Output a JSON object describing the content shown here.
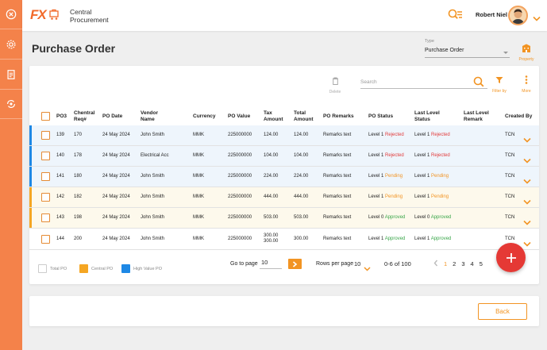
{
  "brand": {
    "logo": "FX",
    "name": "Central Procurement"
  },
  "user": {
    "name": "Robert Niel"
  },
  "page": {
    "title": "Purchase Order"
  },
  "type_filter": {
    "label": "Type",
    "value": "Purchase Order"
  },
  "property": {
    "label": "Property"
  },
  "toolbar": {
    "delete_label": "Delete",
    "search_placeholder": "Search",
    "filter_label": "Filter by",
    "more_label": "More"
  },
  "columns": {
    "po": "PO3",
    "req": "Chentral Req#",
    "date": "PO Date",
    "vendor": "Vendor Name",
    "currency": "Currency",
    "value": "PO Value",
    "tax": "Tax Amount",
    "total": "Total Amount",
    "remarks": "PO Remarks",
    "status": "PO Status",
    "last_status": "Last Level Status",
    "last_remark": "Last Level Remark",
    "created": "Created By"
  },
  "rows": [
    {
      "po": "139",
      "req": "170",
      "date": "24 May 2024",
      "vendor": "John Smith",
      "currency": "MMK",
      "value": "225000000",
      "tax": "124.00",
      "total": "124.00",
      "remarks": "Remarks text",
      "status_level": "Level 1",
      "status": "Rejected",
      "last_level": "Level 1",
      "last_status": "Rejected",
      "created": "TCN",
      "category": "high",
      "tone": "rej"
    },
    {
      "po": "140",
      "req": "178",
      "date": "24 May 2024",
      "vendor": "Electrical Acc",
      "currency": "MMK",
      "value": "225000000",
      "tax": "104.00",
      "total": "104.00",
      "remarks": "Remarks text",
      "status_level": "Level 1",
      "status": "Rejected",
      "last_level": "Level 1",
      "last_status": "Rejected",
      "created": "TCN",
      "category": "high",
      "tone": "rej"
    },
    {
      "po": "141",
      "req": "180",
      "date": "24 May 2024",
      "vendor": "John Smith",
      "currency": "MMK",
      "value": "225000000",
      "tax": "224.00",
      "total": "224.00",
      "remarks": "Remarks text",
      "status_level": "Level 1",
      "status": "Pending",
      "last_level": "Level 1",
      "last_status": "Pending",
      "created": "TCN",
      "category": "high",
      "tone": "pen"
    },
    {
      "po": "142",
      "req": "182",
      "date": "24 May 2024",
      "vendor": "John Smith",
      "currency": "MMK",
      "value": "225000000",
      "tax": "444.00",
      "total": "444.00",
      "remarks": "Remarks text",
      "status_level": "Level 1",
      "status": "Pending",
      "last_level": "Level 1",
      "last_status": "Pending",
      "created": "TCN",
      "category": "central",
      "tone": "pen"
    },
    {
      "po": "143",
      "req": "198",
      "date": "24 May 2024",
      "vendor": "John Smith",
      "currency": "MMK",
      "value": "225000000",
      "tax": "503.00",
      "total": "503.00",
      "remarks": "Remarks text",
      "status_level": "Level 0",
      "status": "Approved",
      "last_level": "Level 0",
      "last_status": "Approved",
      "created": "TCN",
      "category": "central",
      "tone": "app"
    },
    {
      "po": "144",
      "req": "200",
      "date": "24 May 2024",
      "vendor": "John Smith",
      "currency": "MMK",
      "value": "225000000",
      "tax": "300.00 300.00",
      "total": "300.00",
      "remarks": "Remarks text",
      "status_level": "Level 1",
      "status": "Approved",
      "last_level": "Level 1",
      "last_status": "Approved",
      "created": "TCN",
      "category": "total",
      "tone": "app"
    }
  ],
  "legend": [
    {
      "label": "Total PO",
      "color": "#ffffff"
    },
    {
      "label": "Central PO",
      "color": "#f5a623"
    },
    {
      "label": "High Value PO",
      "color": "#1e88e5"
    }
  ],
  "pagination": {
    "goto_label": "Go to page",
    "goto_value": "10",
    "rows_label": "Rows per page",
    "rows_value": "10",
    "range": "0-6 of 100",
    "pages": [
      "1",
      "2",
      "3",
      "4",
      "5"
    ],
    "current_page": "1"
  },
  "footer": {
    "back_label": "Back"
  },
  "colors": {
    "accent": "#f29423",
    "rail": "#f4824a",
    "high_row": "#eef5fc",
    "central_row": "#fdf9ec",
    "fab": "#e53935"
  }
}
